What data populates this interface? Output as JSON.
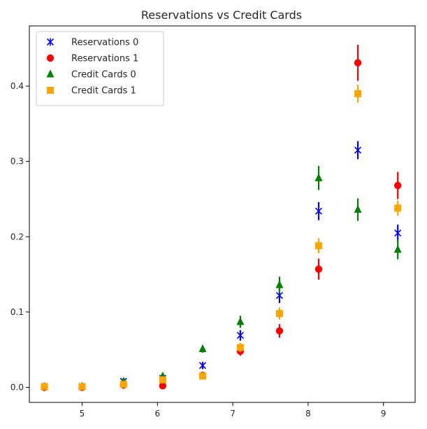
{
  "chart_data": {
    "type": "scatter",
    "title": "Reservations vs Credit Cards",
    "xlabel": "",
    "ylabel": "",
    "xlim": [
      4.3,
      9.42
    ],
    "ylim": [
      -0.02,
      0.48
    ],
    "xticks": [
      5,
      6,
      7,
      8,
      9
    ],
    "yticks": [
      0.0,
      0.1,
      0.2,
      0.3,
      0.4
    ],
    "ytick_labels": [
      "0.0",
      "0.1",
      "0.2",
      "0.3",
      "0.4"
    ],
    "legend_position": "top-left",
    "series": [
      {
        "name": "Reservations 0",
        "color": "#0000ff",
        "marker": "x-cross",
        "x": [
          4.5,
          5.0,
          5.55,
          6.07,
          6.6,
          7.1,
          7.62,
          8.14,
          8.66,
          9.19
        ],
        "y": [
          0.001,
          0.001,
          0.008,
          0.012,
          0.029,
          0.069,
          0.122,
          0.234,
          0.315,
          0.205
        ],
        "err": [
          0.0,
          0.0,
          0.002,
          0.003,
          0.004,
          0.007,
          0.01,
          0.012,
          0.012,
          0.011
        ]
      },
      {
        "name": "Reservations 1",
        "color": "#ff0000",
        "marker": "circle",
        "x": [
          4.5,
          5.0,
          5.55,
          6.07,
          6.6,
          7.1,
          7.62,
          8.14,
          8.66,
          9.19
        ],
        "y": [
          0.0,
          0.0,
          0.003,
          0.002,
          0.016,
          0.048,
          0.075,
          0.157,
          0.431,
          0.268
        ],
        "err": [
          0.0,
          0.0,
          0.001,
          0.001,
          0.003,
          0.006,
          0.009,
          0.014,
          0.024,
          0.018
        ]
      },
      {
        "name": "Credit Cards 0",
        "color": "#008000",
        "marker": "triangle",
        "x": [
          4.5,
          5.0,
          5.55,
          6.07,
          6.6,
          7.1,
          7.62,
          8.14,
          8.66,
          9.19
        ],
        "y": [
          0.001,
          0.001,
          0.008,
          0.015,
          0.051,
          0.087,
          0.136,
          0.278,
          0.236,
          0.183
        ],
        "err": [
          0.0,
          0.0,
          0.002,
          0.003,
          0.005,
          0.008,
          0.011,
          0.016,
          0.015,
          0.013
        ]
      },
      {
        "name": "Credit Cards 1",
        "color": "#ffa500",
        "marker": "square",
        "x": [
          4.5,
          5.0,
          5.55,
          6.07,
          6.6,
          7.1,
          7.62,
          8.14,
          8.66,
          9.19
        ],
        "y": [
          0.001,
          0.001,
          0.004,
          0.01,
          0.015,
          0.053,
          0.098,
          0.188,
          0.39,
          0.238
        ],
        "err": [
          0.0,
          0.0,
          0.001,
          0.002,
          0.003,
          0.006,
          0.008,
          0.01,
          0.012,
          0.01
        ]
      }
    ]
  }
}
